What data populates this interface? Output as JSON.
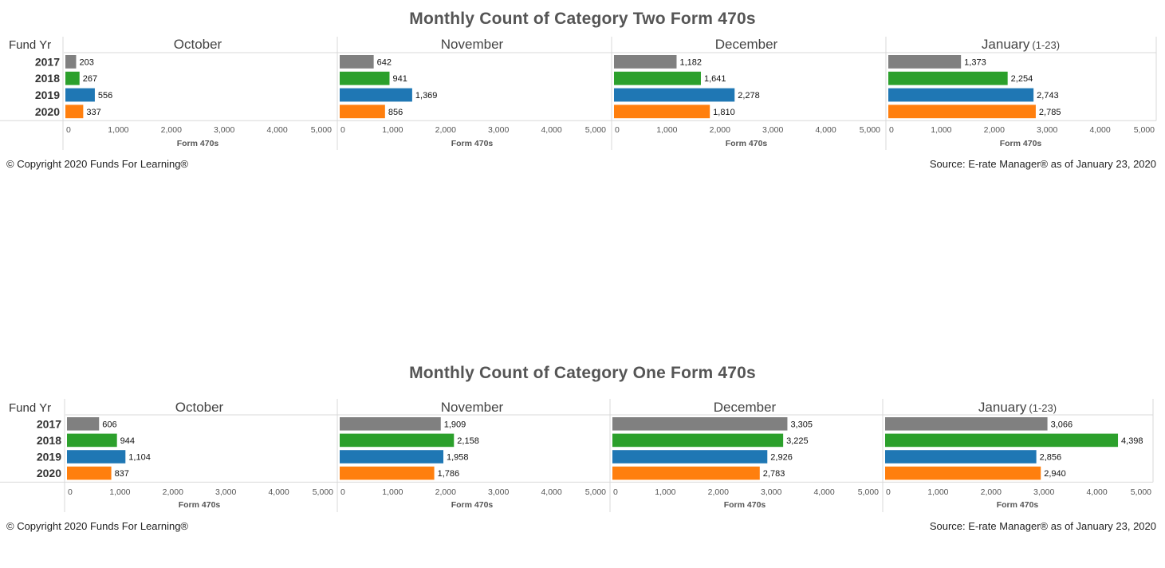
{
  "colors": {
    "2017": "#808080",
    "2018": "#2ca02c",
    "2019": "#1f77b4",
    "2020": "#ff7f0e",
    "gridline": "#d9d9d9",
    "text": "#333333"
  },
  "footer": {
    "left": "© Copyright 2020 Funds For Learning®",
    "right": "Source: E-rate Manager® as of January 23, 2020"
  },
  "chart_data": [
    {
      "type": "bar",
      "title": "Monthly Count of Category Two Form 470s",
      "row_header_label": "Fund Yr",
      "categories": [
        "2017",
        "2018",
        "2019",
        "2020"
      ],
      "xlabel": "Form 470s",
      "xlim": [
        0,
        5000
      ],
      "ticks": [
        "0",
        "1,000",
        "2,000",
        "3,000",
        "4,000",
        "5,000"
      ],
      "tick_values": [
        0,
        1000,
        2000,
        3000,
        4000,
        5000
      ],
      "panels": [
        {
          "month": "October",
          "note": "",
          "values": [
            203,
            267,
            556,
            337
          ],
          "labels": [
            "203",
            "267",
            "556",
            "337"
          ]
        },
        {
          "month": "November",
          "note": "",
          "values": [
            642,
            941,
            1369,
            856
          ],
          "labels": [
            "642",
            "941",
            "1,369",
            "856"
          ]
        },
        {
          "month": "December",
          "note": "",
          "values": [
            1182,
            1641,
            2278,
            1810
          ],
          "labels": [
            "1,182",
            "1,641",
            "2,278",
            "1,810"
          ]
        },
        {
          "month": "January",
          "note": "(1-23)",
          "values": [
            1373,
            2254,
            2743,
            2785
          ],
          "labels": [
            "1,373",
            "2,254",
            "2,743",
            "2,785"
          ]
        }
      ]
    },
    {
      "type": "bar",
      "title": "Monthly Count of Category One Form 470s",
      "row_header_label": "Fund Yr",
      "categories": [
        "2017",
        "2018",
        "2019",
        "2020"
      ],
      "xlabel": "Form 470s",
      "xlim": [
        0,
        5000
      ],
      "ticks": [
        "0",
        "1,000",
        "2,000",
        "3,000",
        "4,000",
        "5,000"
      ],
      "tick_values": [
        0,
        1000,
        2000,
        3000,
        4000,
        5000
      ],
      "panels": [
        {
          "month": "October",
          "note": "",
          "values": [
            606,
            944,
            1104,
            837
          ],
          "labels": [
            "606",
            "944",
            "1,104",
            "837"
          ]
        },
        {
          "month": "November",
          "note": "",
          "values": [
            1909,
            2158,
            1958,
            1786
          ],
          "labels": [
            "1,909",
            "2,158",
            "1,958",
            "1,786"
          ]
        },
        {
          "month": "December",
          "note": "",
          "values": [
            3305,
            3225,
            2926,
            2783
          ],
          "labels": [
            "3,305",
            "3,225",
            "2,926",
            "2,783"
          ]
        },
        {
          "month": "January",
          "note": "(1-23)",
          "values": [
            3066,
            4398,
            2856,
            2940
          ],
          "labels": [
            "3,066",
            "4,398",
            "2,856",
            "2,940"
          ]
        }
      ]
    }
  ]
}
